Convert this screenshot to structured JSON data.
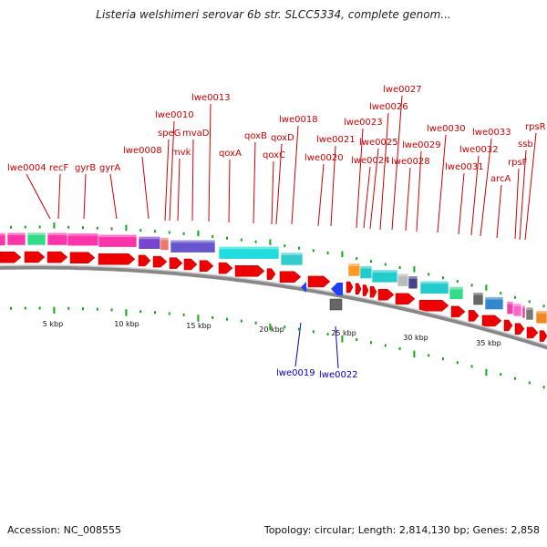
{
  "title": "Listeria welshimeri serovar 6b str. SLCC5334, complete genom...",
  "accession_text": "Accession: NC_008555",
  "summary_text": "Topology: circular; Length: 2,814,130 bp; Genes: 2,858",
  "colors": {
    "gene_label": "#cc0000",
    "reverse_gene_label": "#0000cc",
    "forward_arrow": "#ee0000",
    "reverse_arrow": "#1f3ff0",
    "tick": "#11aa11",
    "backbone": "#888888"
  },
  "scale_labels": [
    "5 kbp",
    "10 kbp",
    "15 kbp",
    "20 kbp",
    "25 kbp",
    "30 kbp",
    "35 kbp"
  ],
  "forward_gene_labels": [
    "lwe0004",
    "recF",
    "gyrB",
    "gyrA",
    "lwe0008",
    "speG",
    "lwe0010",
    "mvk",
    "mvaD",
    "lwe0013",
    "qoxA",
    "qoxB",
    "qoxC",
    "qoxD",
    "lwe0018",
    "lwe0020",
    "lwe0021",
    "lwe0023",
    "lwe0024",
    "lwe0025",
    "lwe0026",
    "lwe0027",
    "lwe0028",
    "lwe0029",
    "lwe0030",
    "lwe0031",
    "lwe0032",
    "lwe0033",
    "arcA",
    "rpsF",
    "ssb",
    "rpsR"
  ],
  "reverse_gene_labels": [
    "lwe0019",
    "lwe0022"
  ]
}
